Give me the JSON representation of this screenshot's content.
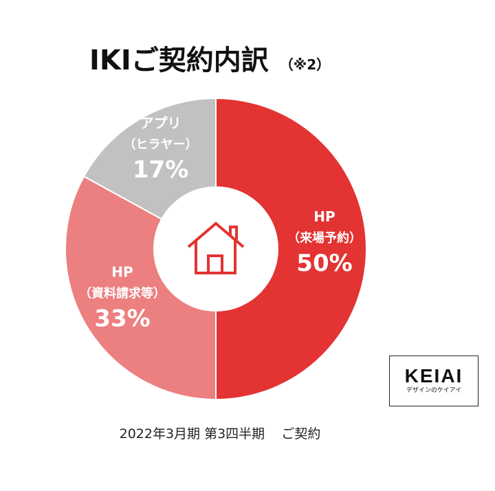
{
  "title": "IKIご契約内訳",
  "title_note": "（※2）",
  "chart_data": {
    "type": "pie",
    "title": "IKIご契約内訳",
    "slices": [
      {
        "label": "HP",
        "sublabel": "（来場予約）",
        "value": 50,
        "pct_label": "50%",
        "color": "#e33333"
      },
      {
        "label": "HP",
        "sublabel": "（資料請求等）",
        "value": 33,
        "pct_label": "33%",
        "color": "#ec7f7f"
      },
      {
        "label": "アプリ",
        "sublabel": "（ヒラヤー）",
        "value": 17,
        "pct_label": "17%",
        "color": "#c1c1c1"
      }
    ],
    "center_icon": "house-icon"
  },
  "logo": {
    "main": "KEIAI",
    "sub": "デザインのケイアイ"
  },
  "caption": {
    "period": "2022年3月期 第3四半期",
    "label": "ご契約"
  }
}
